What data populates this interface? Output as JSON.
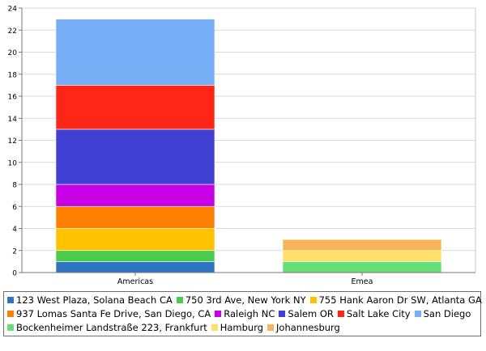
{
  "chart_data": {
    "type": "bar",
    "stacked": true,
    "categories": [
      "Americas",
      "Emea"
    ],
    "ylim": [
      0,
      24
    ],
    "yticks": [
      "0",
      "2",
      "4",
      "6",
      "8",
      "10",
      "12",
      "14",
      "16",
      "18",
      "20",
      "22",
      "24"
    ],
    "grid": true,
    "legend_position": "bottom",
    "series": [
      {
        "name": "123 West Plaza, Solana Beach CA",
        "color": "#2f74c0",
        "values": [
          1,
          0
        ]
      },
      {
        "name": "750 3rd Ave, New York NY",
        "color": "#4ccc4c",
        "values": [
          1,
          0
        ]
      },
      {
        "name": "755 Hank Aaron Dr SW, Atlanta GA",
        "color": "#ffc200",
        "values": [
          2,
          0
        ]
      },
      {
        "name": "937 Lomas Santa Fe Drive, San Diego, CA",
        "color": "#ff8000",
        "values": [
          2,
          0
        ]
      },
      {
        "name": "Raleigh NC",
        "color": "#c800e6",
        "values": [
          2,
          0
        ]
      },
      {
        "name": "Salem OR",
        "color": "#4040d2",
        "values": [
          5,
          0
        ]
      },
      {
        "name": "Salt Lake City",
        "color": "#ff2618",
        "values": [
          4,
          0
        ]
      },
      {
        "name": "San Diego",
        "color": "#75aef5",
        "values": [
          6,
          0
        ]
      },
      {
        "name": "Bockenheimer Landstraße 223, Frankfurt",
        "color": "#66dd77",
        "values": [
          0,
          1
        ]
      },
      {
        "name": "Hamburg",
        "color": "#ffe066",
        "values": [
          0,
          1
        ]
      },
      {
        "name": "Johannesburg",
        "color": "#f9b45a",
        "values": [
          0,
          1
        ]
      }
    ]
  }
}
